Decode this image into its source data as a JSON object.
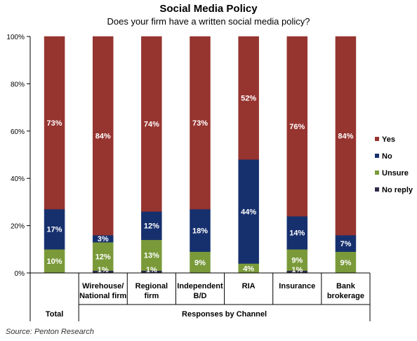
{
  "chart_data": {
    "type": "bar",
    "stacked": true,
    "title": "Social Media Policy",
    "subtitle": "Does your firm have a written social media policy?",
    "source": "Source: Penton Research",
    "categories": [
      [
        "Total"
      ],
      [
        "Wirehouse/",
        "National firm"
      ],
      [
        "Regional",
        "firm"
      ],
      [
        "Independent",
        "B/D"
      ],
      [
        "RIA"
      ],
      [
        "Insurance"
      ],
      [
        "Bank",
        "brokerage"
      ]
    ],
    "group_labels": [
      {
        "label": "Total",
        "from": 0,
        "to": 0
      },
      {
        "label": "Responses by Channel",
        "from": 1,
        "to": 6
      }
    ],
    "series": [
      {
        "name": "No reply",
        "color": "#2e2b4a",
        "values": [
          0,
          1,
          1,
          0,
          0,
          1,
          0
        ],
        "labels": [
          "",
          "",
          "",
          "",
          "",
          "",
          ""
        ]
      },
      {
        "name": "Unsure",
        "color": "#7a9a3a",
        "values": [
          10,
          12,
          13,
          9,
          4,
          9,
          9
        ],
        "labels": [
          "10%",
          "12%",
          "13%",
          "9%",
          "4%",
          "9%",
          "9%"
        ]
      },
      {
        "name": "No",
        "color": "#16306e",
        "values": [
          17,
          3,
          12,
          18,
          44,
          14,
          7
        ],
        "labels": [
          "17%",
          "3%",
          "12%",
          "18%",
          "44%",
          "14%",
          "7%"
        ]
      },
      {
        "name": "Yes",
        "color": "#96342f",
        "values": [
          73,
          84,
          74,
          73,
          52,
          76,
          84
        ],
        "labels": [
          "73%",
          "84%",
          "74%",
          "73%",
          "52%",
          "76%",
          "84%"
        ]
      }
    ],
    "bottom_labels": [
      "",
      "1%",
      "1%",
      "",
      "",
      "1%",
      ""
    ],
    "legend_order": [
      "Yes",
      "No",
      "Unsure",
      "No reply"
    ],
    "legend_position": "right",
    "ylim": [
      0,
      100
    ],
    "yticks": [
      "0%",
      "20%",
      "40%",
      "60%",
      "80%",
      "100%"
    ],
    "ytick_values": [
      0,
      20,
      40,
      60,
      80,
      100
    ],
    "grid": false
  }
}
